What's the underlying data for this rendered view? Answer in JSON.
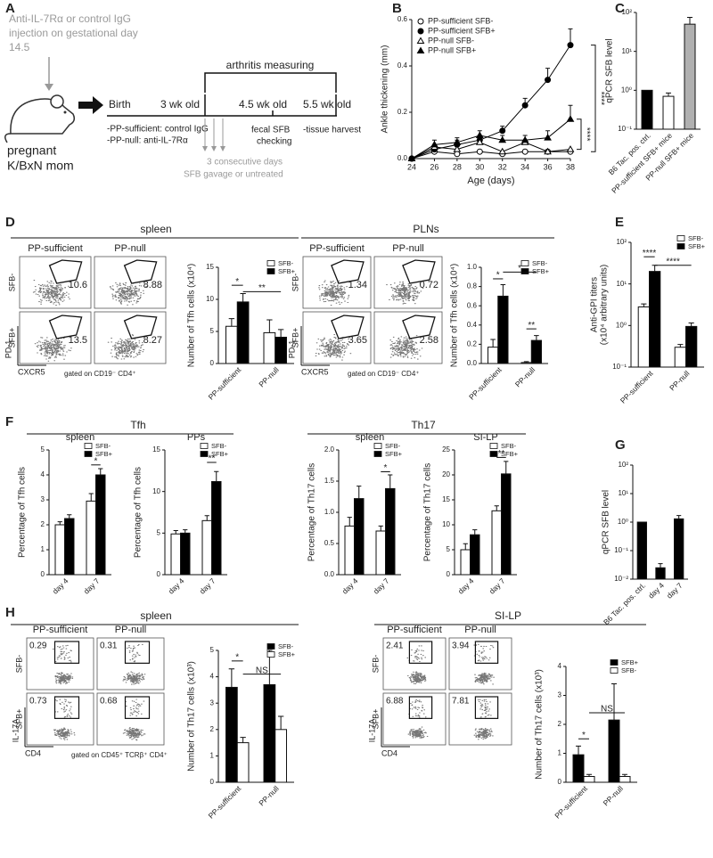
{
  "panel_letters": [
    "A",
    "B",
    "C",
    "D",
    "E",
    "F",
    "G",
    "H"
  ],
  "diagram": {
    "injection": [
      "Anti-IL-7Rα or control IgG",
      "injection on gestational day",
      "14.5"
    ],
    "mother": [
      "pregnant",
      "K/BxN mom"
    ],
    "groups": [
      "-PP-sufficient: control IgG",
      "-PP-null: anti-IL-7Rα"
    ],
    "timeline": [
      "Birth",
      "3 wk old",
      "4.5 wk old",
      "5.5 wk old"
    ],
    "arthritis": "arthritis measuring",
    "gavage": [
      "3 consecutive days",
      "SFB gavage or untreated"
    ],
    "fecal": [
      "fecal SFB",
      "checking"
    ],
    "harvest": "-tissue harvest"
  },
  "section_headings": {
    "D": [
      "spleen",
      "PLNs"
    ],
    "F": [
      "Tfh",
      "Th17"
    ],
    "H": [
      "spleen",
      "SI-LP"
    ]
  },
  "flow_plots": [
    {
      "columns": [
        "PP-sufficient",
        "PP-null"
      ],
      "rows": [
        "SFB-",
        "SFB+"
      ],
      "gates": [
        [
          10.6,
          8.88
        ],
        [
          13.5,
          8.27
        ]
      ],
      "y_axis": "PD-1",
      "x_axis": "CXCR5",
      "gating": "gated on CD19⁻ CD4⁺"
    },
    {
      "columns": [
        "PP-sufficient",
        "PP-null"
      ],
      "rows": [
        "SFB-",
        "SFB+"
      ],
      "gates": [
        [
          1.34,
          0.72
        ],
        [
          3.65,
          2.58
        ]
      ],
      "y_axis": "PD-1",
      "x_axis": "CXCR5",
      "gating": "gated on CD19⁻ CD4⁺"
    },
    {
      "columns": [
        "PP-sufficient",
        "PP-null"
      ],
      "rows": [
        "SFB-",
        "SFB+"
      ],
      "gates": [
        [
          0.29,
          0.31
        ],
        [
          0.73,
          0.68
        ]
      ],
      "y_axis": "IL-17A",
      "x_axis": "CD4",
      "gating": "gated on CD45⁺ TCRβ⁺ CD4⁺"
    },
    {
      "columns": [
        "PP-sufficient",
        "PP-null"
      ],
      "rows": [
        "SFB-",
        "SFB+"
      ],
      "gates": [
        [
          2.41,
          3.94
        ],
        [
          6.88,
          7.81
        ]
      ],
      "y_axis": "IL-17A",
      "x_axis": "CD4"
    }
  ],
  "chart_data": [
    {
      "type": "line",
      "xlabel": "Age (days)",
      "ylabel": "Ankle thickening (mm)",
      "x": [
        24,
        26,
        28,
        30,
        32,
        34,
        36,
        38
      ],
      "xlim": [
        24,
        38
      ],
      "xticks": [
        24,
        26,
        28,
        30,
        32,
        34,
        36,
        38
      ],
      "ylim": [
        0,
        0.6
      ],
      "yticks": [
        {
          "value": 0,
          "label": "0.0"
        },
        0.2,
        0.4,
        0.6
      ],
      "legend": "upper left",
      "series": [
        {
          "name": "PP-sufficient SFB-",
          "color": "#000000",
          "marker": "circle",
          "fill": "#ffffff",
          "values": [
            0,
            0.03,
            0.02,
            0.03,
            0.02,
            0.03,
            0.03,
            0.03
          ]
        },
        {
          "name": "PP-sufficient SFB+",
          "color": "#000000",
          "marker": "circle",
          "fill": "#000000",
          "values": [
            0,
            0.04,
            0.06,
            0.08,
            0.12,
            0.23,
            0.34,
            0.49
          ],
          "errors": [
            0,
            0.02,
            0.02,
            0.02,
            0.02,
            0.03,
            0.05,
            0.07
          ]
        },
        {
          "name": "PP-null SFB-",
          "color": "#000000",
          "marker": "triangle",
          "fill": "#ffffff",
          "values": [
            0,
            0.05,
            0.04,
            0.07,
            0.03,
            0.07,
            0.03,
            0.04
          ]
        },
        {
          "name": "PP-null SFB+",
          "color": "#000000",
          "marker": "triangle",
          "fill": "#000000",
          "values": [
            0,
            0.06,
            0.07,
            0.1,
            0.08,
            0.08,
            0.09,
            0.17
          ],
          "errors": [
            0,
            0.02,
            0.02,
            0.02,
            0.02,
            0.02,
            0.03,
            0.06
          ]
        }
      ],
      "annotations": [
        "****",
        "****"
      ]
    },
    {
      "type": "bar",
      "ylabel": "qPCR SFB level",
      "log_scale": true,
      "categories": [
        "B6 Tac. pos. ctrl.",
        "PP-sufficient SFB+ mice",
        "PP-null SFB+ mice"
      ],
      "values": [
        1,
        0.7,
        50
      ],
      "errors": [
        null,
        0.15,
        25
      ],
      "colors": [
        "#000000",
        "#ffffff",
        "#b0b0b0"
      ],
      "ylim": [
        0.1,
        100
      ],
      "yticks": [
        {
          "value": 0.1,
          "label": "10⁻¹"
        },
        {
          "value": 1,
          "label": "10⁰"
        },
        {
          "value": 10,
          "label": "10¹"
        },
        {
          "value": 100,
          "label": "10²"
        }
      ]
    },
    {
      "type": "bar",
      "ylabel": "Number of Tfh cells (x10⁴)",
      "categories": [
        "PP-sufficient",
        "PP-null"
      ],
      "legend": "upper right",
      "ylim": [
        0,
        15
      ],
      "yticks": [
        0,
        5,
        10,
        15
      ],
      "series": [
        {
          "name": "SFB-",
          "color": "#ffffff",
          "values": [
            5.8,
            4.8
          ],
          "errors": [
            1.2,
            2.0
          ]
        },
        {
          "name": "SFB+",
          "color": "#000000",
          "values": [
            9.6,
            4.1
          ],
          "errors": [
            1.3,
            1.2
          ]
        }
      ],
      "annotations": [
        "*",
        "**"
      ]
    },
    {
      "type": "bar",
      "ylabel": "Number of Tfh cells (x10⁴)",
      "categories": [
        "PP-sufficient",
        "PP-null"
      ],
      "legend": "upper right",
      "ylim": [
        0,
        1.0
      ],
      "yticks": [
        {
          "value": 0,
          "label": "0.0"
        },
        0.2,
        0.4,
        0.6,
        0.8,
        {
          "value": 1.0,
          "label": "1.0"
        }
      ],
      "series": [
        {
          "name": "SFB-",
          "color": "#ffffff",
          "values": [
            0.17,
            0.01
          ],
          "errors": [
            0.08,
            0.01
          ]
        },
        {
          "name": "SFB+",
          "color": "#000000",
          "values": [
            0.7,
            0.24
          ],
          "errors": [
            0.12,
            0.05
          ]
        }
      ],
      "annotations": [
        "*",
        "*",
        "**"
      ]
    },
    {
      "type": "bar",
      "ylabel": [
        "Anti-GPI titers",
        "(x10⁴ arbitrary units)"
      ],
      "log_scale": true,
      "categories": [
        "PP-sufficient",
        "PP-null"
      ],
      "legend": "upper right",
      "ylim": [
        0.1,
        100
      ],
      "yticks": [
        {
          "value": 0.1,
          "label": "10⁻¹"
        },
        {
          "value": 1,
          "label": "10⁰"
        },
        {
          "value": 10,
          "label": "10¹"
        },
        {
          "value": 100,
          "label": "10²"
        }
      ],
      "series": [
        {
          "name": "SFB-",
          "color": "#ffffff",
          "values": [
            2.8,
            0.3
          ],
          "errors": [
            0.5,
            0.05
          ]
        },
        {
          "name": "SFB+",
          "color": "#000000",
          "values": [
            20,
            0.95
          ],
          "errors": [
            8,
            0.2
          ]
        }
      ],
      "annotations": [
        "****",
        "****"
      ]
    },
    {
      "type": "bar",
      "title": "spleen",
      "ylabel": "Percentage of Tfh cells",
      "categories": [
        "day 4",
        "day 7"
      ],
      "legend": "upper right",
      "ylim": [
        0,
        5
      ],
      "yticks": [
        0,
        1,
        2,
        3,
        4,
        5
      ],
      "series": [
        {
          "name": "SFB-",
          "color": "#ffffff",
          "values": [
            2.0,
            2.95
          ],
          "errors": [
            0.12,
            0.3
          ]
        },
        {
          "name": "SFB+",
          "color": "#000000",
          "values": [
            2.25,
            4.0
          ],
          "errors": [
            0.15,
            0.25
          ]
        }
      ],
      "annotations": [
        "*"
      ]
    },
    {
      "type": "bar",
      "title": "PPs",
      "ylabel": "Percentage of Tfh cells",
      "categories": [
        "day 4",
        "day 7"
      ],
      "legend": "upper right",
      "ylim": [
        0,
        15
      ],
      "yticks": [
        0,
        5,
        10,
        15
      ],
      "series": [
        {
          "name": "SFB-",
          "color": "#ffffff",
          "values": [
            4.9,
            6.5
          ],
          "errors": [
            0.4,
            0.6
          ]
        },
        {
          "name": "SFB+",
          "color": "#000000",
          "values": [
            5.0,
            11.2
          ],
          "errors": [
            0.4,
            1.2
          ]
        }
      ],
      "annotations": [
        "**"
      ]
    },
    {
      "type": "bar",
      "title": "spleen",
      "ylabel": "Percentage of Th17 cells",
      "categories": [
        "day 4",
        "day 7"
      ],
      "legend": "upper right",
      "ylim": [
        0,
        2.0
      ],
      "yticks": [
        {
          "value": 0,
          "label": "0.0"
        },
        0.5,
        {
          "value": 1.0,
          "label": "1.0"
        },
        1.5,
        {
          "value": 2.0,
          "label": "2.0"
        }
      ],
      "series": [
        {
          "name": "SFB-",
          "color": "#ffffff",
          "values": [
            0.78,
            0.7
          ],
          "errors": [
            0.14,
            0.08
          ]
        },
        {
          "name": "SFB+",
          "color": "#000000",
          "values": [
            1.22,
            1.38
          ],
          "errors": [
            0.2,
            0.22
          ]
        }
      ],
      "annotations": [
        "*"
      ]
    },
    {
      "type": "bar",
      "title": "SI-LP",
      "ylabel": "Percentage of Th17 cells",
      "categories": [
        "day 4",
        "day 7"
      ],
      "legend": "upper right",
      "ylim": [
        0,
        25
      ],
      "yticks": [
        0,
        5,
        10,
        15,
        20,
        25
      ],
      "series": [
        {
          "name": "SFB-",
          "color": "#ffffff",
          "values": [
            5,
            12.8
          ],
          "errors": [
            1.2,
            1.0
          ]
        },
        {
          "name": "SFB+",
          "color": "#000000",
          "values": [
            8,
            20.2
          ],
          "errors": [
            1.0,
            2.5
          ]
        }
      ],
      "annotations": [
        "**"
      ]
    },
    {
      "type": "bar",
      "ylabel": "qPCR SFB level",
      "log_scale": true,
      "categories": [
        "B6 Tac. pos. ctrl.",
        "day 4",
        "day 7"
      ],
      "values": [
        1,
        0.025,
        1.3
      ],
      "errors": [
        null,
        0.01,
        0.4
      ],
      "colors": [
        "#000000",
        "#000000",
        "#000000"
      ],
      "ylim": [
        0.01,
        100
      ],
      "yticks": [
        {
          "value": 0.01,
          "label": "10⁻²"
        },
        {
          "value": 0.1,
          "label": "10⁻¹"
        },
        {
          "value": 1,
          "label": "10⁰"
        },
        {
          "value": 10,
          "label": "10¹"
        },
        {
          "value": 100,
          "label": "10²"
        }
      ]
    },
    {
      "type": "bar",
      "ylabel": "Number of Th17 cells (x10³)",
      "categories": [
        "PP-sufficient",
        "PP-null"
      ],
      "legend": "upper right",
      "ylim": [
        0,
        5
      ],
      "yticks": [
        0,
        1,
        2,
        3,
        4,
        5
      ],
      "series": [
        {
          "name": "SFB-",
          "color": "#000000",
          "values": [
            3.6,
            3.7
          ],
          "errors": [
            0.7,
            1.3
          ]
        },
        {
          "name": "SFB+",
          "color": "#ffffff",
          "values": [
            1.5,
            2.0
          ],
          "errors": [
            0.2,
            0.5
          ]
        }
      ],
      "annotations": [
        "*",
        "NS"
      ]
    },
    {
      "type": "bar",
      "ylabel": "Number of Th17 cells (x10³)",
      "categories": [
        "PP-sufficient",
        "PP-null"
      ],
      "legend": "upper right",
      "ylim": [
        0,
        4
      ],
      "yticks": [
        0,
        1,
        2,
        3,
        4
      ],
      "series": [
        {
          "name": "SFB+",
          "color": "#000000",
          "values": [
            0.95,
            2.15
          ],
          "errors": [
            0.3,
            1.25
          ]
        },
        {
          "name": "SFB-",
          "color": "#ffffff",
          "values": [
            0.2,
            0.2
          ],
          "errors": [
            0.07,
            0.07
          ]
        }
      ],
      "annotations": [
        "*",
        "NS"
      ]
    }
  ]
}
